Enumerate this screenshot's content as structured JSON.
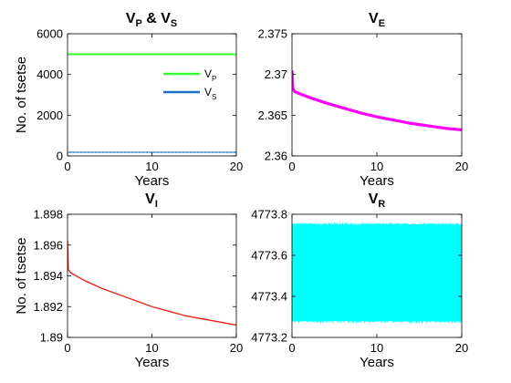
{
  "chart_data": [
    {
      "type": "line",
      "title": "V_P & V_S",
      "title_parts": [
        {
          "base": "V",
          "sub": "P"
        },
        {
          "text": " & "
        },
        {
          "base": "V",
          "sub": "S"
        }
      ],
      "xlabel": "Years",
      "ylabel": "No. of tsetse",
      "xlim": [
        0,
        20
      ],
      "ylim": [
        0,
        6000
      ],
      "xticks": [
        0,
        10,
        20
      ],
      "xtick_labels": [
        "0",
        "10",
        "20"
      ],
      "yticks": [
        0,
        2000,
        4000,
        6000
      ],
      "ytick_labels": [
        "0",
        "2000",
        "4000",
        "6000"
      ],
      "grid": false,
      "legend": {
        "placement": "top-right",
        "entries": [
          {
            "base": "V",
            "sub": "P",
            "color": "#33ff33"
          },
          {
            "base": "V",
            "sub": "S",
            "color": "#1f6fc5"
          }
        ]
      },
      "series": [
        {
          "name": "V_P",
          "color": "#33ff33",
          "style": "flat",
          "x": [
            0,
            20
          ],
          "y": [
            4990,
            4990
          ]
        },
        {
          "name": "V_S",
          "color": "#1f6fc5",
          "style": "band",
          "x": [
            0,
            20
          ],
          "y_min": [
            150,
            150
          ],
          "y_max": [
            210,
            210
          ]
        }
      ]
    },
    {
      "type": "line",
      "title": "V_E",
      "title_parts": [
        {
          "base": "V",
          "sub": "E"
        }
      ],
      "xlabel": "Years",
      "ylabel": "",
      "xlim": [
        0,
        20
      ],
      "ylim": [
        2.36,
        2.375
      ],
      "xticks": [
        0,
        10,
        20
      ],
      "xtick_labels": [
        "0",
        "10",
        "20"
      ],
      "yticks": [
        2.36,
        2.365,
        2.37,
        2.375
      ],
      "ytick_labels": [
        "2.36",
        "2.365",
        "2.37",
        "2.375"
      ],
      "grid": false,
      "series": [
        {
          "name": "V_E",
          "color": "#ff00ff",
          "style": "thick",
          "x": [
            0,
            0.1,
            0.3,
            1,
            2,
            4,
            6,
            8,
            10,
            12,
            14,
            16,
            18,
            20
          ],
          "y": [
            2.3705,
            2.3683,
            2.3679,
            2.3676,
            2.3672,
            2.3665,
            2.3659,
            2.3653,
            2.3648,
            2.3644,
            2.364,
            2.3637,
            2.3634,
            2.3632
          ]
        }
      ]
    },
    {
      "type": "line",
      "title": "V_I",
      "title_parts": [
        {
          "base": "V",
          "sub": "I"
        }
      ],
      "xlabel": "Years",
      "ylabel": "No. of tsetse",
      "xlim": [
        0,
        20
      ],
      "ylim": [
        1.89,
        1.898
      ],
      "xticks": [
        0,
        10,
        20
      ],
      "xtick_labels": [
        "0",
        "10",
        "20"
      ],
      "yticks": [
        1.89,
        1.892,
        1.894,
        1.896,
        1.898
      ],
      "ytick_labels": [
        "1.89",
        "1.892",
        "1.894",
        "1.896",
        "1.898"
      ],
      "grid": false,
      "series": [
        {
          "name": "V_I",
          "color": "#e8241c",
          "style": "line",
          "x": [
            0,
            0.1,
            0.4,
            1,
            2,
            4,
            6,
            8,
            10,
            12,
            14,
            16,
            18,
            20
          ],
          "y": [
            1.8963,
            1.8944,
            1.8942,
            1.894,
            1.8937,
            1.8932,
            1.8928,
            1.8924,
            1.892,
            1.8917,
            1.8914,
            1.8912,
            1.891,
            1.8908
          ]
        }
      ]
    },
    {
      "type": "line",
      "title": "V_R",
      "title_parts": [
        {
          "base": "V",
          "sub": "R"
        }
      ],
      "xlabel": "Years",
      "ylabel": "",
      "xlim": [
        0,
        20
      ],
      "ylim": [
        4773.2,
        4773.8
      ],
      "xticks": [
        0,
        10,
        20
      ],
      "xtick_labels": [
        "0",
        "10",
        "20"
      ],
      "yticks": [
        4773.2,
        4773.4,
        4773.6,
        4773.8
      ],
      "ytick_labels": [
        "4773.2",
        "4773.4",
        "4773.6",
        "4773.8"
      ],
      "grid": false,
      "series": [
        {
          "name": "V_R",
          "color": "#00ffff",
          "style": "oscillation",
          "x": [
            0,
            20
          ],
          "y_min": [
            4773.28,
            4773.28
          ],
          "y_max": [
            4773.75,
            4773.75
          ]
        }
      ]
    }
  ]
}
